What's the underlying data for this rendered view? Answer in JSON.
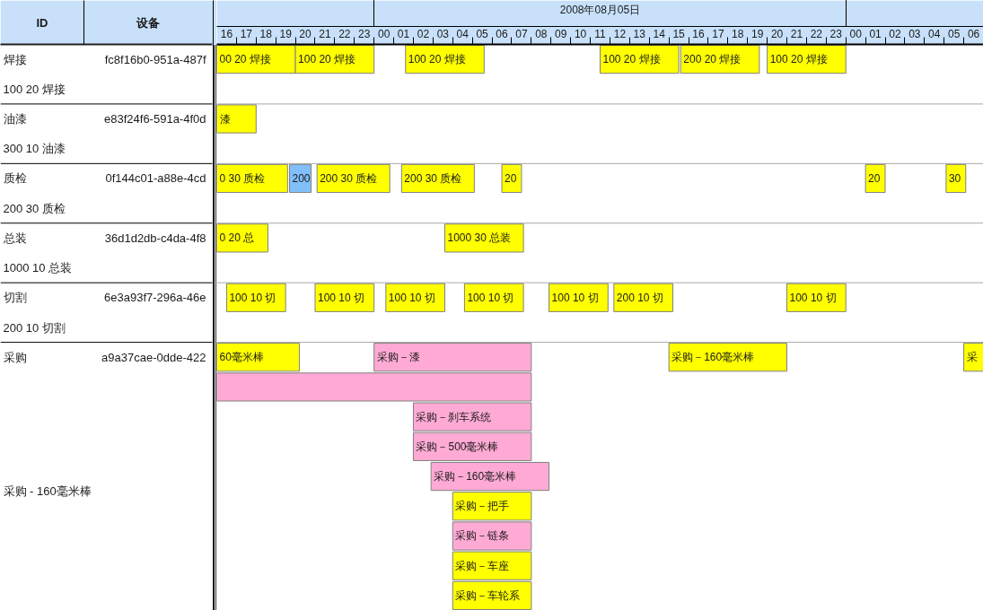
{
  "chart_data": [
    {
      "type": "other",
      "annotations": [
        "ID",
        "设备",
        "焊接",
        "fc8f16b0-951a-487f",
        "100 20 焊接",
        "油漆",
        "e83f24f6-591a-4f0d",
        "300 10 油漆",
        "质检",
        "0f144c01-a88e-4cd",
        "200 30 质检",
        "总装",
        "36d1d2db-c4da-4f8",
        "1000 10 总装",
        "切割",
        "6e3a93f7-296a-46e",
        "200 10 切割",
        "采购",
        "a9a37cae-0dde-422",
        "采购 - 160毫米棒"
      ]
    },
    {
      "type": "bar",
      "orientation": "horizontal",
      "grid": "y",
      "categories": [
        null,
        null,
        null,
        null,
        null,
        null,
        null,
        null,
        null,
        null,
        null,
        null,
        null,
        null,
        null,
        null,
        null,
        null,
        null
      ],
      "series": [
        {
          "name": "00 20 焊接",
          "color": "#ffff00",
          "values": [
            4,
            null,
            null,
            null,
            null,
            null,
            null,
            null,
            null,
            null,
            null,
            null,
            null,
            null,
            null,
            null,
            null,
            null,
            null
          ],
          "base": [
            16,
            null,
            null,
            null,
            null,
            null,
            null,
            null,
            null,
            null,
            null,
            null,
            null,
            null,
            null,
            null,
            null,
            null,
            null
          ]
        },
        {
          "name": "100 20 焊接",
          "color": "#ffff00",
          "values": [
            4,
            null,
            null,
            null,
            null,
            null,
            null,
            null,
            null,
            null,
            null,
            null,
            null,
            null,
            null,
            null,
            null,
            null,
            null
          ],
          "base": [
            20,
            null,
            null,
            null,
            null,
            null,
            null,
            null,
            null,
            null,
            null,
            null,
            null,
            null,
            null,
            null,
            null,
            null,
            null
          ]
        },
        {
          "name": "100 20 焊接",
          "color": "#ffff00",
          "values": [
            4,
            null,
            null,
            null,
            null,
            null,
            null,
            null,
            null,
            null,
            null,
            null,
            null,
            null,
            null,
            null,
            null,
            null,
            null
          ],
          "base": [
            25.6,
            null,
            null,
            null,
            null,
            null,
            null,
            null,
            null,
            null,
            null,
            null,
            null,
            null,
            null,
            null,
            null,
            null,
            null
          ]
        },
        {
          "name": "100 20 焊接",
          "color": "#ffff00",
          "values": [
            4,
            null,
            null,
            null,
            null,
            null,
            null,
            null,
            null,
            null,
            null,
            null,
            null,
            null,
            null,
            null,
            null,
            null,
            null
          ],
          "base": [
            35.5,
            null,
            null,
            null,
            null,
            null,
            null,
            null,
            null,
            null,
            null,
            null,
            null,
            null,
            null,
            null,
            null,
            null,
            null
          ]
        },
        {
          "name": "200 20 焊接",
          "color": "#ffff00",
          "values": [
            4,
            null,
            null,
            null,
            null,
            null,
            null,
            null,
            null,
            null,
            null,
            null,
            null,
            null,
            null,
            null,
            null,
            null,
            null
          ],
          "base": [
            39.6,
            null,
            null,
            null,
            null,
            null,
            null,
            null,
            null,
            null,
            null,
            null,
            null,
            null,
            null,
            null,
            null,
            null,
            null
          ]
        },
        {
          "name": "100 20 焊接",
          "color": "#ffff00",
          "values": [
            4,
            null,
            null,
            null,
            null,
            null,
            null,
            null,
            null,
            null,
            null,
            null,
            null,
            null,
            null,
            null,
            null,
            null,
            null
          ],
          "base": [
            44,
            null,
            null,
            null,
            null,
            null,
            null,
            null,
            null,
            null,
            null,
            null,
            null,
            null,
            null,
            null,
            null,
            null,
            null
          ]
        },
        {
          "name": "漆",
          "color": "#ffff00",
          "values": [
            null,
            null,
            2,
            null,
            null,
            null,
            null,
            null,
            null,
            null,
            null,
            null,
            null,
            null,
            null,
            null,
            null,
            null,
            null
          ],
          "base": [
            null,
            null,
            16,
            null,
            null,
            null,
            null,
            null,
            null,
            null,
            null,
            null,
            null,
            null,
            null,
            null,
            null,
            null,
            null
          ]
        },
        {
          "name": "0 30 质检",
          "color": "#ffff00",
          "values": [
            null,
            null,
            null,
            null,
            3.6,
            null,
            null,
            null,
            null,
            null,
            null,
            null,
            null,
            null,
            null,
            null,
            null,
            null,
            null
          ],
          "base": [
            null,
            null,
            null,
            null,
            16,
            null,
            null,
            null,
            null,
            null,
            null,
            null,
            null,
            null,
            null,
            null,
            null,
            null,
            null
          ]
        },
        {
          "name": "200",
          "color": "#80bffa",
          "values": [
            null,
            null,
            null,
            null,
            1.1,
            null,
            null,
            null,
            null,
            null,
            null,
            null,
            null,
            null,
            null,
            null,
            null,
            null,
            null
          ],
          "base": [
            null,
            null,
            null,
            null,
            19.7,
            null,
            null,
            null,
            null,
            null,
            null,
            null,
            null,
            null,
            null,
            null,
            null,
            null,
            null
          ]
        },
        {
          "name": "200 30 质检",
          "color": "#ffff00",
          "values": [
            null,
            null,
            null,
            null,
            3.7,
            null,
            null,
            null,
            null,
            null,
            null,
            null,
            null,
            null,
            null,
            null,
            null,
            null,
            null
          ],
          "base": [
            null,
            null,
            null,
            null,
            21.1,
            null,
            null,
            null,
            null,
            null,
            null,
            null,
            null,
            null,
            null,
            null,
            null,
            null,
            null
          ]
        },
        {
          "name": "200 30 质检",
          "color": "#ffff00",
          "values": [
            null,
            null,
            null,
            null,
            3.7,
            null,
            null,
            null,
            null,
            null,
            null,
            null,
            null,
            null,
            null,
            null,
            null,
            null,
            null
          ],
          "base": [
            null,
            null,
            null,
            null,
            25.4,
            null,
            null,
            null,
            null,
            null,
            null,
            null,
            null,
            null,
            null,
            null,
            null,
            null,
            null
          ]
        },
        {
          "name": "20",
          "color": "#ffff00",
          "values": [
            null,
            null,
            null,
            null,
            1,
            null,
            null,
            null,
            null,
            null,
            null,
            null,
            null,
            null,
            null,
            null,
            null,
            null,
            null
          ],
          "base": [
            null,
            null,
            null,
            null,
            30.5,
            null,
            null,
            null,
            null,
            null,
            null,
            null,
            null,
            null,
            null,
            null,
            null,
            null,
            null
          ]
        },
        {
          "name": "20",
          "color": "#ffff00",
          "values": [
            null,
            null,
            null,
            null,
            1,
            null,
            null,
            null,
            null,
            null,
            null,
            null,
            null,
            null,
            null,
            null,
            null,
            null,
            null
          ],
          "base": [
            null,
            null,
            null,
            null,
            49,
            null,
            null,
            null,
            null,
            null,
            null,
            null,
            null,
            null,
            null,
            null,
            null,
            null,
            null
          ]
        },
        {
          "name": "30",
          "color": "#ffff00",
          "values": [
            null,
            null,
            null,
            null,
            1,
            null,
            null,
            null,
            null,
            null,
            null,
            null,
            null,
            null,
            null,
            null,
            null,
            null,
            null
          ],
          "base": [
            null,
            null,
            null,
            null,
            53.1,
            null,
            null,
            null,
            null,
            null,
            null,
            null,
            null,
            null,
            null,
            null,
            null,
            null,
            null
          ]
        },
        {
          "name": "0 20 总",
          "color": "#ffff00",
          "values": [
            null,
            null,
            null,
            null,
            null,
            null,
            2.6,
            null,
            null,
            null,
            null,
            null,
            null,
            null,
            null,
            null,
            null,
            null,
            null
          ],
          "base": [
            null,
            null,
            null,
            null,
            null,
            null,
            16,
            null,
            null,
            null,
            null,
            null,
            null,
            null,
            null,
            null,
            null,
            null,
            null
          ]
        },
        {
          "name": "1000 30 总装",
          "color": "#ffff00",
          "values": [
            null,
            null,
            null,
            null,
            null,
            null,
            4,
            null,
            null,
            null,
            null,
            null,
            null,
            null,
            null,
            null,
            null,
            null,
            null
          ],
          "base": [
            null,
            null,
            null,
            null,
            null,
            null,
            27.6,
            null,
            null,
            null,
            null,
            null,
            null,
            null,
            null,
            null,
            null,
            null,
            null
          ]
        },
        {
          "name": "100 10 切",
          "color": "#ffff00",
          "values": [
            null,
            null,
            null,
            null,
            null,
            null,
            null,
            null,
            3,
            null,
            null,
            null,
            null,
            null,
            null,
            null,
            null,
            null,
            null
          ],
          "base": [
            null,
            null,
            null,
            null,
            null,
            null,
            null,
            null,
            16.5,
            null,
            null,
            null,
            null,
            null,
            null,
            null,
            null,
            null,
            null
          ]
        },
        {
          "name": "100 10 切",
          "color": "#ffff00",
          "values": [
            null,
            null,
            null,
            null,
            null,
            null,
            null,
            null,
            3,
            null,
            null,
            null,
            null,
            null,
            null,
            null,
            null,
            null,
            null
          ],
          "base": [
            null,
            null,
            null,
            null,
            null,
            null,
            null,
            null,
            21,
            null,
            null,
            null,
            null,
            null,
            null,
            null,
            null,
            null,
            null
          ]
        },
        {
          "name": "100 10 切",
          "color": "#ffff00",
          "values": [
            null,
            null,
            null,
            null,
            null,
            null,
            null,
            null,
            3,
            null,
            null,
            null,
            null,
            null,
            null,
            null,
            null,
            null,
            null
          ],
          "base": [
            null,
            null,
            null,
            null,
            null,
            null,
            null,
            null,
            24.6,
            null,
            null,
            null,
            null,
            null,
            null,
            null,
            null,
            null,
            null
          ]
        },
        {
          "name": "100 10 切",
          "color": "#ffff00",
          "values": [
            null,
            null,
            null,
            null,
            null,
            null,
            null,
            null,
            3,
            null,
            null,
            null,
            null,
            null,
            null,
            null,
            null,
            null,
            null
          ],
          "base": [
            null,
            null,
            null,
            null,
            null,
            null,
            null,
            null,
            28.6,
            null,
            null,
            null,
            null,
            null,
            null,
            null,
            null,
            null,
            null
          ]
        },
        {
          "name": "100 10 切",
          "color": "#ffff00",
          "values": [
            null,
            null,
            null,
            null,
            null,
            null,
            null,
            null,
            3,
            null,
            null,
            null,
            null,
            null,
            null,
            null,
            null,
            null,
            null
          ],
          "base": [
            null,
            null,
            null,
            null,
            null,
            null,
            null,
            null,
            32.9,
            null,
            null,
            null,
            null,
            null,
            null,
            null,
            null,
            null,
            null
          ]
        },
        {
          "name": "200 10 切",
          "color": "#ffff00",
          "values": [
            null,
            null,
            null,
            null,
            null,
            null,
            null,
            null,
            3,
            null,
            null,
            null,
            null,
            null,
            null,
            null,
            null,
            null,
            null
          ],
          "base": [
            null,
            null,
            null,
            null,
            null,
            null,
            null,
            null,
            36.2,
            null,
            null,
            null,
            null,
            null,
            null,
            null,
            null,
            null,
            null
          ]
        },
        {
          "name": "100 10 切",
          "color": "#ffff00",
          "values": [
            null,
            null,
            null,
            null,
            null,
            null,
            null,
            null,
            3,
            null,
            null,
            null,
            null,
            null,
            null,
            null,
            null,
            null,
            null
          ],
          "base": [
            null,
            null,
            null,
            null,
            null,
            null,
            null,
            null,
            45,
            null,
            null,
            null,
            null,
            null,
            null,
            null,
            null,
            null,
            null
          ]
        },
        {
          "name": "60毫米棒",
          "color": "#ffff00",
          "values": [
            null,
            null,
            null,
            null,
            null,
            null,
            null,
            null,
            null,
            null,
            4.2,
            null,
            null,
            null,
            null,
            null,
            null,
            null,
            null
          ],
          "base": [
            null,
            null,
            null,
            null,
            null,
            null,
            null,
            null,
            null,
            null,
            16,
            null,
            null,
            null,
            null,
            null,
            null,
            null,
            null
          ]
        },
        {
          "name": "采购－漆",
          "color": "#ffaad4",
          "values": [
            null,
            null,
            null,
            null,
            null,
            null,
            null,
            null,
            null,
            null,
            8,
            null,
            null,
            null,
            null,
            null,
            null,
            null,
            null
          ],
          "base": [
            null,
            null,
            null,
            null,
            null,
            null,
            null,
            null,
            null,
            null,
            24,
            null,
            null,
            null,
            null,
            null,
            null,
            null,
            null
          ]
        },
        {
          "name": "采购－160毫米棒",
          "color": "#ffff00",
          "values": [
            null,
            null,
            null,
            null,
            null,
            null,
            null,
            null,
            null,
            null,
            6,
            null,
            null,
            null,
            null,
            null,
            null,
            null,
            null
          ],
          "base": [
            null,
            null,
            null,
            null,
            null,
            null,
            null,
            null,
            null,
            null,
            39,
            null,
            null,
            null,
            null,
            null,
            null,
            null,
            null
          ]
        },
        {
          "name": "采",
          "color": "#ffff00",
          "values": [
            null,
            null,
            null,
            null,
            null,
            null,
            null,
            null,
            null,
            null,
            1,
            null,
            null,
            null,
            null,
            null,
            null,
            null,
            null
          ],
          "base": [
            null,
            null,
            null,
            null,
            null,
            null,
            null,
            null,
            null,
            null,
            54,
            null,
            null,
            null,
            null,
            null,
            null,
            null,
            null
          ]
        },
        {
          "color": "#ffaad4",
          "values": [
            null,
            null,
            null,
            null,
            null,
            null,
            null,
            null,
            null,
            null,
            null,
            16,
            null,
            null,
            null,
            null,
            null,
            null,
            null
          ],
          "base": [
            null,
            null,
            null,
            null,
            null,
            null,
            null,
            null,
            null,
            null,
            null,
            16,
            null,
            null,
            null,
            null,
            null,
            null,
            null
          ]
        },
        {
          "name": "采购－刹车系统",
          "color": "#ffaad4",
          "values": [
            null,
            null,
            null,
            null,
            null,
            null,
            null,
            null,
            null,
            null,
            null,
            null,
            6,
            null,
            null,
            null,
            null,
            null,
            null
          ],
          "base": [
            null,
            null,
            null,
            null,
            null,
            null,
            null,
            null,
            null,
            null,
            null,
            null,
            26,
            null,
            null,
            null,
            null,
            null,
            null
          ]
        },
        {
          "name": "采购－500毫米棒",
          "color": "#ffaad4",
          "values": [
            null,
            null,
            null,
            null,
            null,
            null,
            null,
            null,
            null,
            null,
            null,
            null,
            null,
            6,
            null,
            null,
            null,
            null,
            null
          ],
          "base": [
            null,
            null,
            null,
            null,
            null,
            null,
            null,
            null,
            null,
            null,
            null,
            null,
            null,
            26,
            null,
            null,
            null,
            null,
            null
          ]
        },
        {
          "name": "采购－160毫米棒",
          "color": "#ffaad4",
          "values": [
            null,
            null,
            null,
            null,
            null,
            null,
            null,
            null,
            null,
            null,
            null,
            null,
            null,
            null,
            6,
            null,
            null,
            null,
            null
          ],
          "base": [
            null,
            null,
            null,
            null,
            null,
            null,
            null,
            null,
            null,
            null,
            null,
            null,
            null,
            null,
            26.9,
            null,
            null,
            null,
            null
          ]
        },
        {
          "name": "采购－把手",
          "color": "#ffff00",
          "values": [
            null,
            null,
            null,
            null,
            null,
            null,
            null,
            null,
            null,
            null,
            null,
            null,
            null,
            null,
            null,
            4,
            null,
            null,
            null
          ],
          "base": [
            null,
            null,
            null,
            null,
            null,
            null,
            null,
            null,
            null,
            null,
            null,
            null,
            null,
            null,
            null,
            28,
            null,
            null,
            null
          ]
        },
        {
          "name": "采购－链条",
          "color": "#ffaad4",
          "values": [
            null,
            null,
            null,
            null,
            null,
            null,
            null,
            null,
            null,
            null,
            null,
            null,
            null,
            null,
            null,
            null,
            4,
            null,
            null
          ],
          "base": [
            null,
            null,
            null,
            null,
            null,
            null,
            null,
            null,
            null,
            null,
            null,
            null,
            null,
            null,
            null,
            null,
            28,
            null,
            null
          ]
        },
        {
          "name": "采购－车座",
          "color": "#ffff00",
          "values": [
            null,
            null,
            null,
            null,
            null,
            null,
            null,
            null,
            null,
            null,
            null,
            null,
            null,
            null,
            null,
            null,
            null,
            4,
            null
          ],
          "base": [
            null,
            null,
            null,
            null,
            null,
            null,
            null,
            null,
            null,
            null,
            null,
            null,
            null,
            null,
            null,
            null,
            null,
            28,
            null
          ]
        },
        {
          "name": "采购－车轮系",
          "color": "#ffff00",
          "values": [
            null,
            null,
            null,
            null,
            null,
            null,
            null,
            null,
            null,
            null,
            null,
            null,
            null,
            null,
            null,
            null,
            null,
            null,
            4
          ],
          "base": [
            null,
            null,
            null,
            null,
            null,
            null,
            null,
            null,
            null,
            null,
            null,
            null,
            null,
            null,
            null,
            null,
            null,
            null,
            28
          ]
        }
      ],
      "xlim": [
        16,
        55
      ],
      "xticks": [
        {
          "value": 16.5,
          "label": "16"
        },
        {
          "value": 17.5,
          "label": "17"
        },
        {
          "value": 18.5,
          "label": "18"
        },
        {
          "value": 19.5,
          "label": "19"
        },
        {
          "value": 20.5,
          "label": "20"
        },
        {
          "value": 21.5,
          "label": "21"
        },
        {
          "value": 22.5,
          "label": "22"
        },
        {
          "value": 23.5,
          "label": "23"
        },
        {
          "value": 24.5,
          "label": "00"
        },
        {
          "value": 25.5,
          "label": "01"
        },
        {
          "value": 26.5,
          "label": "02"
        },
        {
          "value": 27.5,
          "label": "03"
        },
        {
          "value": 28.5,
          "label": "04"
        },
        {
          "value": 29.5,
          "label": "05"
        },
        {
          "value": 30.5,
          "label": "06"
        },
        {
          "value": 31.5,
          "label": "07"
        },
        {
          "value": 32.5,
          "label": "08"
        },
        {
          "value": 33.5,
          "label": "09"
        },
        {
          "value": 34.5,
          "label": "10"
        },
        {
          "value": 35.5,
          "label": "11"
        },
        {
          "value": 36.5,
          "label": "12"
        },
        {
          "value": 37.5,
          "label": "13"
        },
        {
          "value": 38.5,
          "label": "14"
        },
        {
          "value": 39.5,
          "label": "15"
        },
        {
          "value": 40.5,
          "label": "16"
        },
        {
          "value": 41.5,
          "label": "17"
        },
        {
          "value": 42.5,
          "label": "18"
        },
        {
          "value": 43.5,
          "label": "19"
        },
        {
          "value": 44.5,
          "label": "20"
        },
        {
          "value": 45.5,
          "label": "21"
        },
        {
          "value": 46.5,
          "label": "22"
        },
        {
          "value": 47.5,
          "label": "23"
        },
        {
          "value": 48.5,
          "label": "00"
        },
        {
          "value": 49.5,
          "label": "01"
        },
        {
          "value": 50.5,
          "label": "02"
        },
        {
          "value": 51.5,
          "label": "03"
        },
        {
          "value": 52.5,
          "label": "04"
        },
        {
          "value": 53.5,
          "label": "05"
        },
        {
          "value": 54.5,
          "label": "06"
        },
        {
          "value": 17,
          "label": null
        },
        {
          "value": 18,
          "label": null
        },
        {
          "value": 19,
          "label": null
        },
        {
          "value": 20,
          "label": null
        },
        {
          "value": 21,
          "label": null
        },
        {
          "value": 22,
          "label": null
        },
        {
          "value": 23,
          "label": null
        },
        {
          "value": 24,
          "label": null
        },
        {
          "value": 25,
          "label": null
        },
        {
          "value": 26,
          "label": null
        },
        {
          "value": 27,
          "label": null
        },
        {
          "value": 28,
          "label": null
        },
        {
          "value": 29,
          "label": null
        },
        {
          "value": 30,
          "label": null
        },
        {
          "value": 31,
          "label": null
        },
        {
          "value": 32,
          "label": null
        },
        {
          "value": 33,
          "label": null
        },
        {
          "value": 34,
          "label": null
        },
        {
          "value": 35,
          "label": null
        },
        {
          "value": 36,
          "label": null
        },
        {
          "value": 37,
          "label": null
        },
        {
          "value": 38,
          "label": null
        },
        {
          "value": 39,
          "label": null
        },
        {
          "value": 40,
          "label": null
        },
        {
          "value": 41,
          "label": null
        },
        {
          "value": 42,
          "label": null
        },
        {
          "value": 43,
          "label": null
        },
        {
          "value": 44,
          "label": null
        },
        {
          "value": 45,
          "label": null
        },
        {
          "value": 46,
          "label": null
        },
        {
          "value": 47,
          "label": null
        },
        {
          "value": 48,
          "label": null
        },
        {
          "value": 49,
          "label": null
        },
        {
          "value": 50,
          "label": null
        },
        {
          "value": 51,
          "label": null
        },
        {
          "value": 52,
          "label": null
        },
        {
          "value": 53,
          "label": null
        },
        {
          "value": 54,
          "label": null
        }
      ],
      "x2label": "2008年08月05日"
    }
  ]
}
